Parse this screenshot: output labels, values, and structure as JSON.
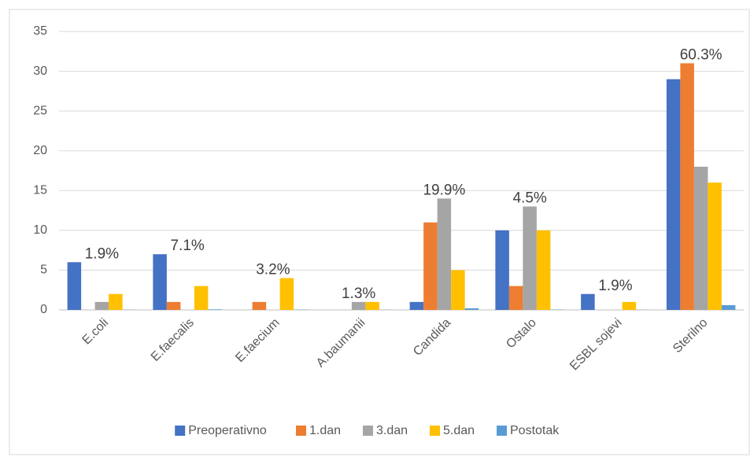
{
  "chart_data": {
    "type": "bar",
    "categories": [
      "E.coli",
      "E.faecalis",
      "E.faecium",
      "A.baumanii",
      "Candida",
      "Ostalo",
      "ESBL sojevi",
      "Sterilno"
    ],
    "series": [
      {
        "name": "Preoperativno",
        "color": "#4472c4",
        "values": [
          6,
          7,
          0,
          0,
          1,
          10,
          2,
          29
        ]
      },
      {
        "name": "1.dan",
        "color": "#ed7d31",
        "values": [
          0,
          1,
          1,
          0,
          11,
          3,
          0,
          31
        ]
      },
      {
        "name": "3.dan",
        "color": "#a5a5a5",
        "values": [
          1,
          0,
          0,
          1,
          14,
          13,
          0,
          18
        ]
      },
      {
        "name": "5.dan",
        "color": "#ffc000",
        "values": [
          2,
          3,
          4,
          1,
          5,
          10,
          1,
          16
        ]
      },
      {
        "name": "Postotak",
        "color": "#5b9bd5",
        "values": [
          0.019,
          0.071,
          0.032,
          0.013,
          0.199,
          0.045,
          0.019,
          0.603
        ],
        "value_labels": [
          "1.9%",
          "7.1%",
          "3.2%",
          "1.3%",
          "19.9%",
          "4.5%",
          "1.9%",
          "60.3%"
        ]
      }
    ],
    "ylim": [
      0,
      35
    ],
    "yticks": [
      0,
      5,
      10,
      15,
      20,
      25,
      30,
      35
    ],
    "grid": true,
    "legend": "bottom"
  }
}
